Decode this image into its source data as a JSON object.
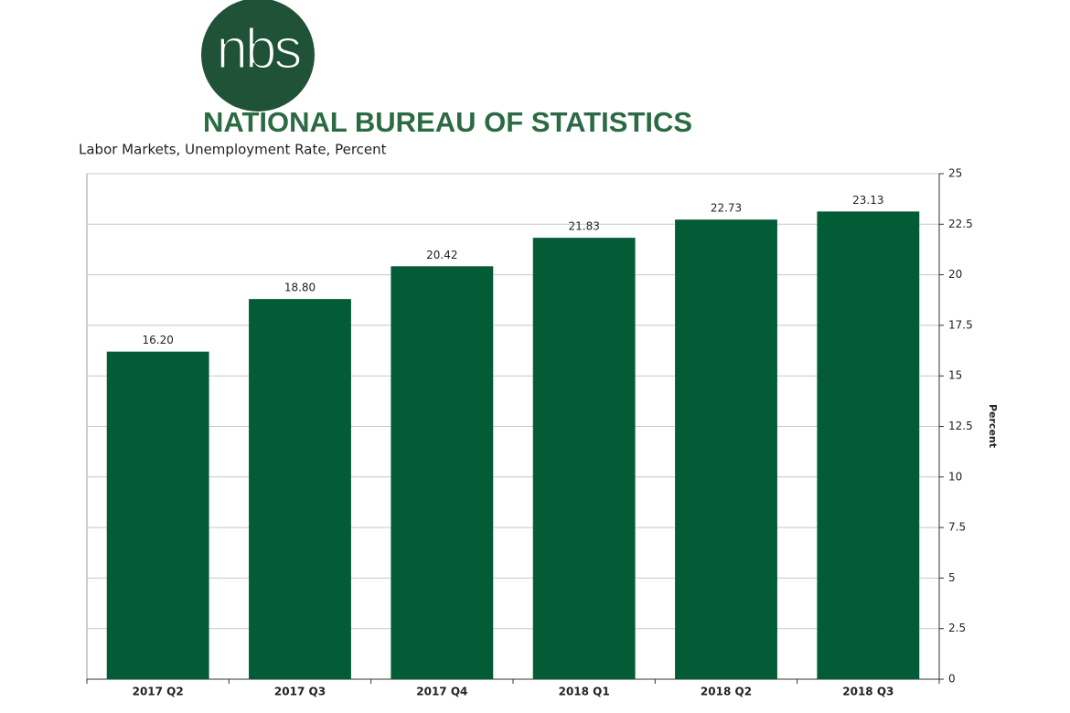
{
  "chart_data": {
    "type": "bar",
    "logo_text": "nbs",
    "organization": "NATIONAL BUREAU OF STATISTICS",
    "title": "Labor Markets, Unemployment Rate, Percent",
    "y_label": "Percent",
    "categories": [
      "2017 Q2",
      "2017 Q3",
      "2017 Q4",
      "2018 Q1",
      "2018 Q2",
      "2018 Q3"
    ],
    "values": [
      16.2,
      18.8,
      20.42,
      21.83,
      22.73,
      23.13
    ],
    "value_labels": [
      "16.20",
      "18.80",
      "20.42",
      "21.83",
      "22.73",
      "23.13"
    ],
    "color": "#035c35",
    "ylim": [
      0,
      25
    ],
    "yticks": [
      0,
      2.5,
      5,
      7.5,
      10,
      12.5,
      15,
      17.5,
      20,
      22.5,
      25
    ],
    "y_axis_side": "right",
    "grid": true
  }
}
